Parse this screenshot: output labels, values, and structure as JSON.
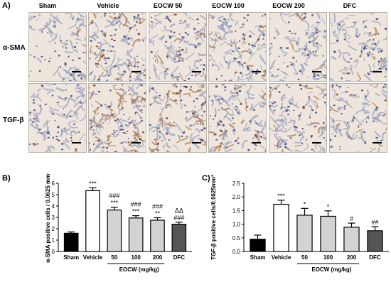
{
  "panels": {
    "a": "A)",
    "b": "B)",
    "c": "C)"
  },
  "micrographs": {
    "columns": [
      "Sham",
      "Vehicle",
      "EOCW 50",
      "EOCW 100",
      "EOCW 200",
      "DFC"
    ],
    "rows": [
      "α-SMA",
      "TGF-β"
    ]
  },
  "chart_data": [
    {
      "type": "bar",
      "categories": [
        "Sham",
        "Vehicle",
        "50",
        "100",
        "200",
        "DFC"
      ],
      "values": [
        1.6,
        5.35,
        3.65,
        2.95,
        2.75,
        2.4
      ],
      "errors": [
        0.12,
        0.25,
        0.25,
        0.2,
        0.22,
        0.18
      ],
      "colors": [
        "#000000",
        "#ffffff",
        "#d3d3d3",
        "#d3d3d3",
        "#d3d3d3",
        "#555555"
      ],
      "ylabel": "α-SMA positive cells / 0.0625 mm²",
      "xlabel": "EOCW (mg/kg)",
      "ylim": [
        0,
        6
      ],
      "yticks": [
        "0",
        "1",
        "2",
        "3",
        "4",
        "5",
        "6"
      ],
      "annotations": [
        [],
        [
          "***"
        ],
        [
          "###",
          "***"
        ],
        [
          "###",
          "***"
        ],
        [
          "###",
          "**"
        ],
        [
          "ΔΔ",
          "###"
        ]
      ]
    },
    {
      "type": "bar",
      "categories": [
        "Sham",
        "Vehicle",
        "50",
        "100",
        "200",
        "DFC"
      ],
      "values": [
        0.45,
        1.73,
        1.33,
        1.29,
        0.89,
        0.76
      ],
      "errors": [
        0.15,
        0.15,
        0.25,
        0.2,
        0.15,
        0.15
      ],
      "colors": [
        "#000000",
        "#ffffff",
        "#d3d3d3",
        "#d3d3d3",
        "#d3d3d3",
        "#555555"
      ],
      "ylabel": "TGF-β positive cells/0.0625mm²",
      "xlabel": "EOCW (mg/kg)",
      "ylim": [
        0,
        2.5
      ],
      "yticks": [
        "0.0",
        "0.5",
        "1.0",
        "1.5",
        "2.0",
        "2.5"
      ],
      "annotations": [
        [],
        [
          "***"
        ],
        [
          "*"
        ],
        [
          "*"
        ],
        [
          "#"
        ],
        [
          "##"
        ]
      ]
    }
  ]
}
